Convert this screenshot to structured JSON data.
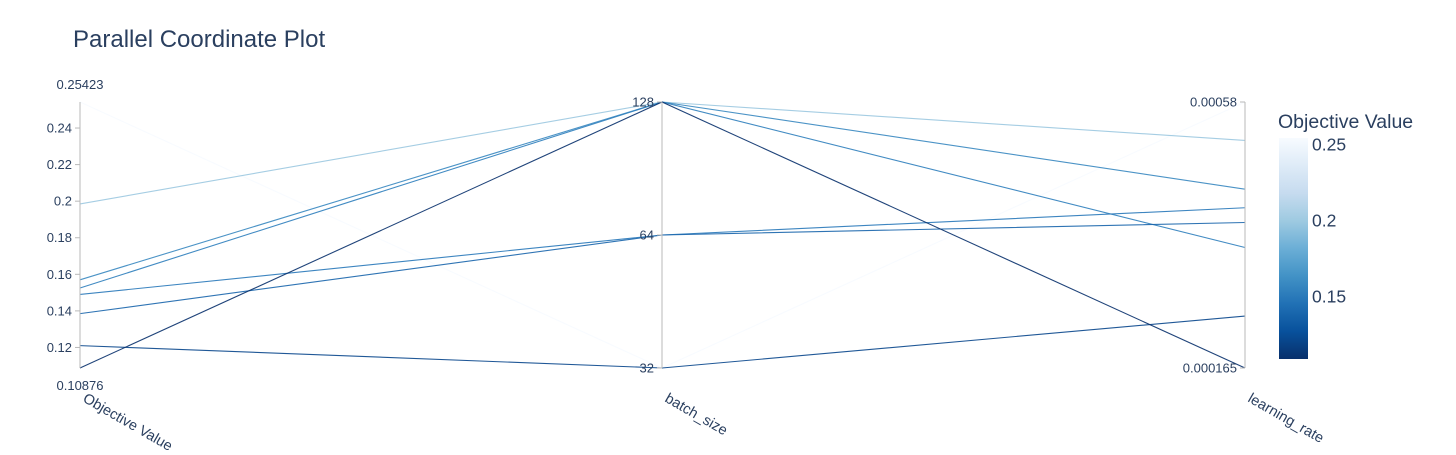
{
  "chart_data": {
    "type": "parallel_coordinates",
    "title": "Parallel Coordinate Plot",
    "dimensions": [
      {
        "key": "objective",
        "label": "Objective Value",
        "range": [
          0.10876,
          0.25423
        ],
        "range_labels": [
          "0.10876",
          "0.25423"
        ],
        "ticks": [
          0.12,
          0.14,
          0.16,
          0.18,
          0.2,
          0.22,
          0.24
        ],
        "tick_labels": [
          "0.12",
          "0.14",
          "0.16",
          "0.18",
          "0.2",
          "0.22",
          "0.24"
        ],
        "tick_side": "left"
      },
      {
        "key": "batch_size",
        "label": "batch_size",
        "scale": "log2",
        "range": [
          32,
          128
        ],
        "ticks": [
          32,
          64,
          128
        ],
        "tick_labels": [
          "32",
          "64",
          "128"
        ],
        "tick_side": "left"
      },
      {
        "key": "learning_rate",
        "label": "learning_rate",
        "range": [
          0.000165,
          0.00058
        ],
        "range_labels": [
          "0.000165",
          "0.00058"
        ],
        "ticks": [],
        "tick_labels": [],
        "tick_side": "left"
      }
    ],
    "trials": [
      {
        "objective": 0.25423,
        "batch_size": 32,
        "learning_rate": 0.00058
      },
      {
        "objective": 0.1985,
        "batch_size": 128,
        "learning_rate": 0.00052
      },
      {
        "objective": 0.157,
        "batch_size": 128,
        "learning_rate": 0.000444
      },
      {
        "objective": 0.1525,
        "batch_size": 128,
        "learning_rate": 0.000353
      },
      {
        "objective": 0.149,
        "batch_size": 64,
        "learning_rate": 0.000415
      },
      {
        "objective": 0.1385,
        "batch_size": 64,
        "learning_rate": 0.000392
      },
      {
        "objective": 0.121,
        "batch_size": 32,
        "learning_rate": 0.000246
      },
      {
        "objective": 0.10876,
        "batch_size": 128,
        "learning_rate": 0.000165
      }
    ],
    "colorscale": {
      "title": "Objective Value",
      "ticks": [
        0.15,
        0.2,
        0.25
      ],
      "tick_labels": [
        "0.15",
        "0.2",
        "0.25"
      ],
      "range": [
        0.10876,
        0.25423
      ],
      "low_color": "#08306b",
      "mid_color": "#4f9bcb",
      "high_color": "#f7fbff",
      "stops": [
        "#08306b",
        "#08519c",
        "#2171b5",
        "#4292c6",
        "#6baed6",
        "#9ecae1",
        "#c6dbef",
        "#deebf7",
        "#f7fbff"
      ]
    },
    "grid": false,
    "legend_position": "right"
  },
  "colors": {
    "text": "#2a3f5f",
    "axis": "#b9b9b9"
  }
}
